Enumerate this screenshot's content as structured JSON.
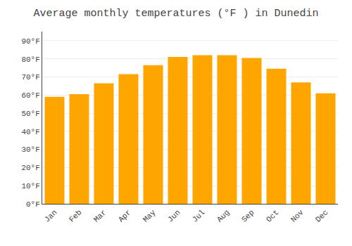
{
  "chart_data": {
    "type": "bar",
    "title": "Average monthly temperatures (°F ) in Dunedin",
    "categories": [
      "Jan",
      "Feb",
      "Mar",
      "Apr",
      "May",
      "Jun",
      "Jul",
      "Aug",
      "Sep",
      "Oct",
      "Nov",
      "Dec"
    ],
    "values": [
      59,
      60.5,
      66.5,
      71.5,
      76.5,
      81,
      82,
      82,
      80.5,
      74.5,
      67,
      61
    ],
    "color": "#FFA500",
    "ylim": [
      0,
      95
    ],
    "yticks": [
      {
        "value": 0,
        "label": "0°F"
      },
      {
        "value": 10,
        "label": "10°F"
      },
      {
        "value": 20,
        "label": "20°F"
      },
      {
        "value": 30,
        "label": "30°F"
      },
      {
        "value": 40,
        "label": "40°F"
      },
      {
        "value": 50,
        "label": "50°F"
      },
      {
        "value": 60,
        "label": "60°F"
      },
      {
        "value": 70,
        "label": "70°F"
      },
      {
        "value": 80,
        "label": "80°F"
      },
      {
        "value": 90,
        "label": "90°F"
      }
    ],
    "grid": true
  }
}
